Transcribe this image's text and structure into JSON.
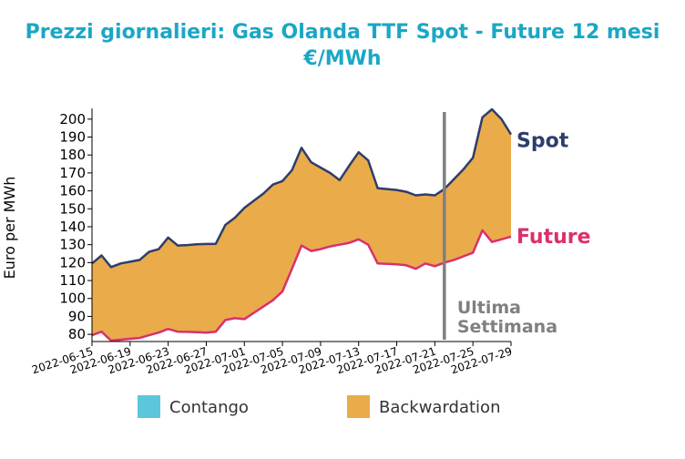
{
  "colors": {
    "title": "#1aa7c6",
    "backwardation": "#eaab4a",
    "contango": "#5bc6dc",
    "spot": "#2e3e6b",
    "future": "#d9306e",
    "marker": "#808080",
    "axis": "#000000"
  },
  "chart_data": {
    "type": "area",
    "title": "Prezzi giornalieri: Gas Olanda TTF Spot - Future 12 mesi",
    "subtitle": "€/MWh",
    "ylabel": "Euro per MWh",
    "xlabel": "",
    "ylim": [
      76,
      206
    ],
    "yticks": [
      80,
      90,
      100,
      110,
      120,
      130,
      140,
      150,
      160,
      170,
      180,
      190,
      200
    ],
    "xlim": [
      "2022-06-15",
      "2022-07-29"
    ],
    "xticks": [
      "2022-06-15",
      "2022-06-19",
      "2022-06-23",
      "2022-06-27",
      "2022-07-01",
      "2022-07-05",
      "2022-07-09",
      "2022-07-13",
      "2022-07-17",
      "2022-07-21",
      "2022-07-25",
      "2022-07-29"
    ],
    "grid": false,
    "legend": {
      "placement": "bottom",
      "entries": [
        {
          "label": "Contango",
          "color": "#5bc6dc"
        },
        {
          "label": "Backwardation",
          "color": "#eaab4a"
        }
      ]
    },
    "annotation": {
      "date": "2022-07-22",
      "lines": [
        "Ultima",
        "Settimana"
      ]
    },
    "x": [
      "2022-06-15",
      "2022-06-16",
      "2022-06-17",
      "2022-06-18",
      "2022-06-19",
      "2022-06-20",
      "2022-06-21",
      "2022-06-22",
      "2022-06-23",
      "2022-06-24",
      "2022-06-25",
      "2022-06-26",
      "2022-06-27",
      "2022-06-28",
      "2022-06-29",
      "2022-06-30",
      "2022-07-01",
      "2022-07-02",
      "2022-07-03",
      "2022-07-04",
      "2022-07-05",
      "2022-07-06",
      "2022-07-07",
      "2022-07-08",
      "2022-07-09",
      "2022-07-10",
      "2022-07-11",
      "2022-07-12",
      "2022-07-13",
      "2022-07-14",
      "2022-07-15",
      "2022-07-16",
      "2022-07-17",
      "2022-07-18",
      "2022-07-19",
      "2022-07-20",
      "2022-07-21",
      "2022-07-22",
      "2022-07-23",
      "2022-07-24",
      "2022-07-25",
      "2022-07-26",
      "2022-07-27",
      "2022-07-28",
      "2022-07-29"
    ],
    "series": [
      {
        "name": "Spot",
        "values": [
          119.5,
          124,
          117.5,
          119.5,
          120.5,
          121.5,
          126,
          127.5,
          134,
          129.5,
          129.8,
          130.2,
          130.4,
          130.5,
          141,
          145,
          150.5,
          154.5,
          158.5,
          163.5,
          165.5,
          171.5,
          184,
          176,
          173,
          170,
          166,
          174,
          181.5,
          177,
          161.5,
          161,
          160.5,
          159.5,
          157.5,
          158,
          157.5,
          161,
          166.5,
          172,
          178.5,
          201,
          205.5,
          200,
          191.5
        ]
      },
      {
        "name": "Future",
        "values": [
          79.5,
          81.5,
          76.5,
          77,
          77.5,
          78,
          79.5,
          81,
          83,
          81.5,
          81.4,
          81.2,
          81,
          81.5,
          88,
          89,
          88.5,
          92,
          95.5,
          99,
          104,
          116.5,
          129.5,
          126.5,
          127.5,
          129,
          130,
          131,
          133,
          130,
          119.5,
          119.3,
          119,
          118.5,
          116.5,
          119.5,
          118,
          120,
          121.5,
          123.5,
          125.5,
          138,
          131.5,
          133,
          134.5
        ]
      }
    ]
  }
}
